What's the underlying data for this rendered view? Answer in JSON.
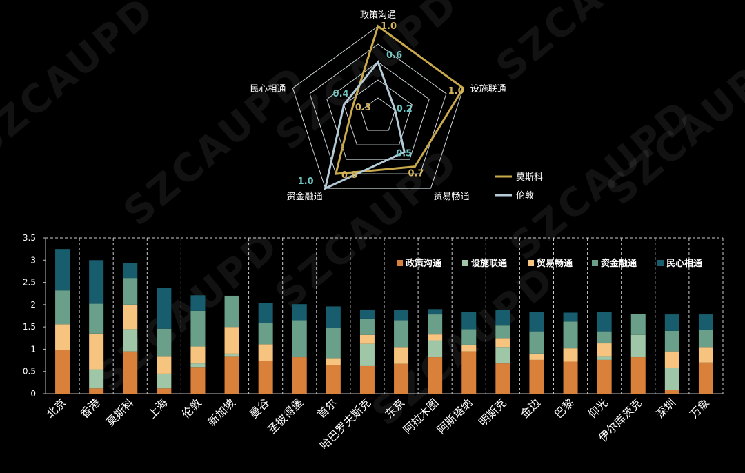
{
  "watermark": "SZCAUPD",
  "colors": {
    "moscow_line": "#c9a94b",
    "london_line": "#b5cbd8",
    "moscow_value_text": "#d4b55a",
    "london_value_text": "#6fc6c2",
    "radar_grid": "#cfd8dc",
    "axis": "#bdbdbd",
    "gridline": "#cccccc"
  },
  "chart_data": [
    {
      "type": "radar",
      "axes": [
        "政策沟通",
        "设施联通",
        "贸易畅通",
        "资金融通",
        "民心相通"
      ],
      "series": [
        {
          "name": "莫斯科",
          "values": [
            1.0,
            1.0,
            0.7,
            0.8,
            0.3
          ],
          "color": "#c9a94b"
        },
        {
          "name": "伦敦",
          "values": [
            0.6,
            0.2,
            0.5,
            1.0,
            0.4
          ],
          "color": "#b5cbd8"
        }
      ],
      "range": [
        0,
        1
      ],
      "value_labels": {
        "莫斯科": [
          "1.0",
          "1.0",
          "0.7",
          "0.8",
          "0.3"
        ],
        "伦敦": [
          "0.6",
          "0.2",
          "0.5",
          "1.0",
          "0.4"
        ]
      }
    },
    {
      "type": "bar",
      "stacked": true,
      "categories": [
        "北京",
        "香港",
        "莫斯科",
        "上海",
        "伦敦",
        "新加坡",
        "曼谷",
        "圣彼得堡",
        "首尔",
        "哈巴罗夫斯克",
        "东京",
        "阿拉木图",
        "阿斯塔纳",
        "明斯克",
        "金边",
        "巴黎",
        "仰光",
        "伊尔库茨克",
        "深圳",
        "万象"
      ],
      "series": [
        {
          "name": "政策沟通",
          "color": "#d9803a",
          "values": [
            0.98,
            0.12,
            0.95,
            0.12,
            0.6,
            0.83,
            0.73,
            0.82,
            0.65,
            0.62,
            0.67,
            0.82,
            0.95,
            0.68,
            0.76,
            0.72,
            0.76,
            0.82,
            0.08,
            0.7
          ]
        },
        {
          "name": "设施联通",
          "color": "#9fc6a6",
          "values": [
            0.0,
            0.43,
            0.5,
            0.33,
            0.08,
            0.07,
            0.0,
            0.0,
            0.0,
            0.5,
            0.0,
            0.38,
            0.0,
            0.37,
            0.0,
            0.0,
            0.07,
            0.5,
            0.5,
            0.0
          ]
        },
        {
          "name": "贸易畅通",
          "color": "#f6c47f",
          "values": [
            0.58,
            0.8,
            0.55,
            0.38,
            0.38,
            0.6,
            0.38,
            0.0,
            0.15,
            0.2,
            0.38,
            0.13,
            0.15,
            0.2,
            0.14,
            0.3,
            0.3,
            0.0,
            0.37,
            0.35
          ]
        },
        {
          "name": "资金融通",
          "color": "#6a9f8a",
          "values": [
            0.76,
            0.67,
            0.6,
            0.63,
            0.8,
            0.7,
            0.47,
            0.83,
            0.68,
            0.37,
            0.6,
            0.45,
            0.35,
            0.28,
            0.5,
            0.6,
            0.27,
            0.47,
            0.46,
            0.38
          ]
        },
        {
          "name": "民心相通",
          "color": "#185d6e",
          "values": [
            0.93,
            0.98,
            0.33,
            0.92,
            0.35,
            0.0,
            0.45,
            0.36,
            0.48,
            0.2,
            0.23,
            0.12,
            0.38,
            0.35,
            0.43,
            0.2,
            0.43,
            0.0,
            0.37,
            0.35
          ]
        }
      ],
      "ylim": [
        0,
        3.5
      ],
      "yticks": [
        "0",
        "0.5",
        "1",
        "1.5",
        "2",
        "2.5",
        "3",
        "3.5"
      ],
      "grid": "vertical dashed",
      "legend_position": "top-right"
    }
  ]
}
